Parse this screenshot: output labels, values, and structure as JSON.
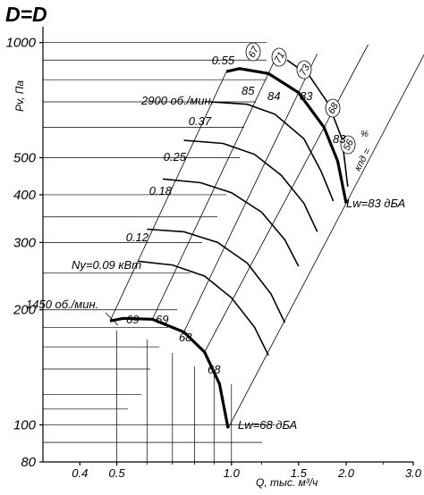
{
  "chart_data": {
    "type": "line",
    "title": "D=D",
    "xlabel": "Q, тыс. м³/ч",
    "ylabel": "Pv, Па",
    "x_scale": "log",
    "y_scale": "log",
    "xlim": [
      0.32,
      3.0
    ],
    "ylim": [
      80,
      1100
    ],
    "x_tick_labels": [
      "0.4",
      "0.5",
      "1.0",
      "1.5",
      "2.0",
      "3.0"
    ],
    "y_tick_labels": [
      "1000",
      "500",
      "400",
      "300",
      "200",
      "100",
      "80"
    ],
    "efficiency_label": "кпд =",
    "efficiency_unit": "%",
    "efficiency_rays": [
      "56",
      "68",
      "73",
      "71",
      "67"
    ],
    "speed_curves": [
      {
        "speed_label": "2900 об./мин.",
        "noise_label": "Lw=83 дБА",
        "points": [
          [
            0.97,
            840
          ],
          [
            1.05,
            855
          ],
          [
            1.25,
            830
          ],
          [
            1.5,
            740
          ],
          [
            1.75,
            600
          ],
          [
            1.9,
            490
          ],
          [
            2.0,
            380
          ]
        ],
        "efficiency_marks": [
          "85",
          "84",
          "83",
          "83"
        ]
      },
      {
        "speed_label": "1450 об./мин.",
        "noise_label": "Lw=68 дБА",
        "points": [
          [
            0.48,
            187
          ],
          [
            0.52,
            190
          ],
          [
            0.62,
            189
          ],
          [
            0.75,
            175
          ],
          [
            0.85,
            155
          ],
          [
            0.93,
            128
          ],
          [
            0.98,
            98
          ]
        ],
        "efficiency_marks": [
          "69",
          "69",
          "68",
          "68"
        ]
      }
    ],
    "power_curves": [
      {
        "label": "0.55",
        "points": [
          [
            1.4,
            900
          ],
          [
            1.6,
            820
          ],
          [
            1.8,
            690
          ],
          [
            1.95,
            560
          ],
          [
            2.02,
            420
          ]
        ]
      },
      {
        "label": "0.37",
        "points": [
          [
            0.88,
            700
          ],
          [
            1.1,
            690
          ],
          [
            1.3,
            650
          ],
          [
            1.55,
            560
          ],
          [
            1.72,
            460
          ],
          [
            1.85,
            385
          ]
        ]
      },
      {
        "label": "0.25",
        "points": [
          [
            0.75,
            555
          ],
          [
            0.95,
            545
          ],
          [
            1.15,
            510
          ],
          [
            1.35,
            450
          ],
          [
            1.55,
            380
          ],
          [
            1.68,
            320
          ]
        ]
      },
      {
        "label": "0.18",
        "points": [
          [
            0.66,
            440
          ],
          [
            0.83,
            430
          ],
          [
            1.0,
            405
          ],
          [
            1.2,
            360
          ],
          [
            1.38,
            305
          ],
          [
            1.5,
            260
          ]
        ]
      },
      {
        "label": "0.12",
        "points": [
          [
            0.6,
            325
          ],
          [
            0.75,
            320
          ],
          [
            0.92,
            300
          ],
          [
            1.1,
            265
          ],
          [
            1.27,
            220
          ],
          [
            1.38,
            185
          ]
        ]
      },
      {
        "label": "Ny=0.09 кВт",
        "points": [
          [
            0.57,
            268
          ],
          [
            0.7,
            262
          ],
          [
            0.85,
            245
          ],
          [
            1.0,
            215
          ],
          [
            1.15,
            180
          ],
          [
            1.25,
            152
          ]
        ]
      }
    ]
  }
}
